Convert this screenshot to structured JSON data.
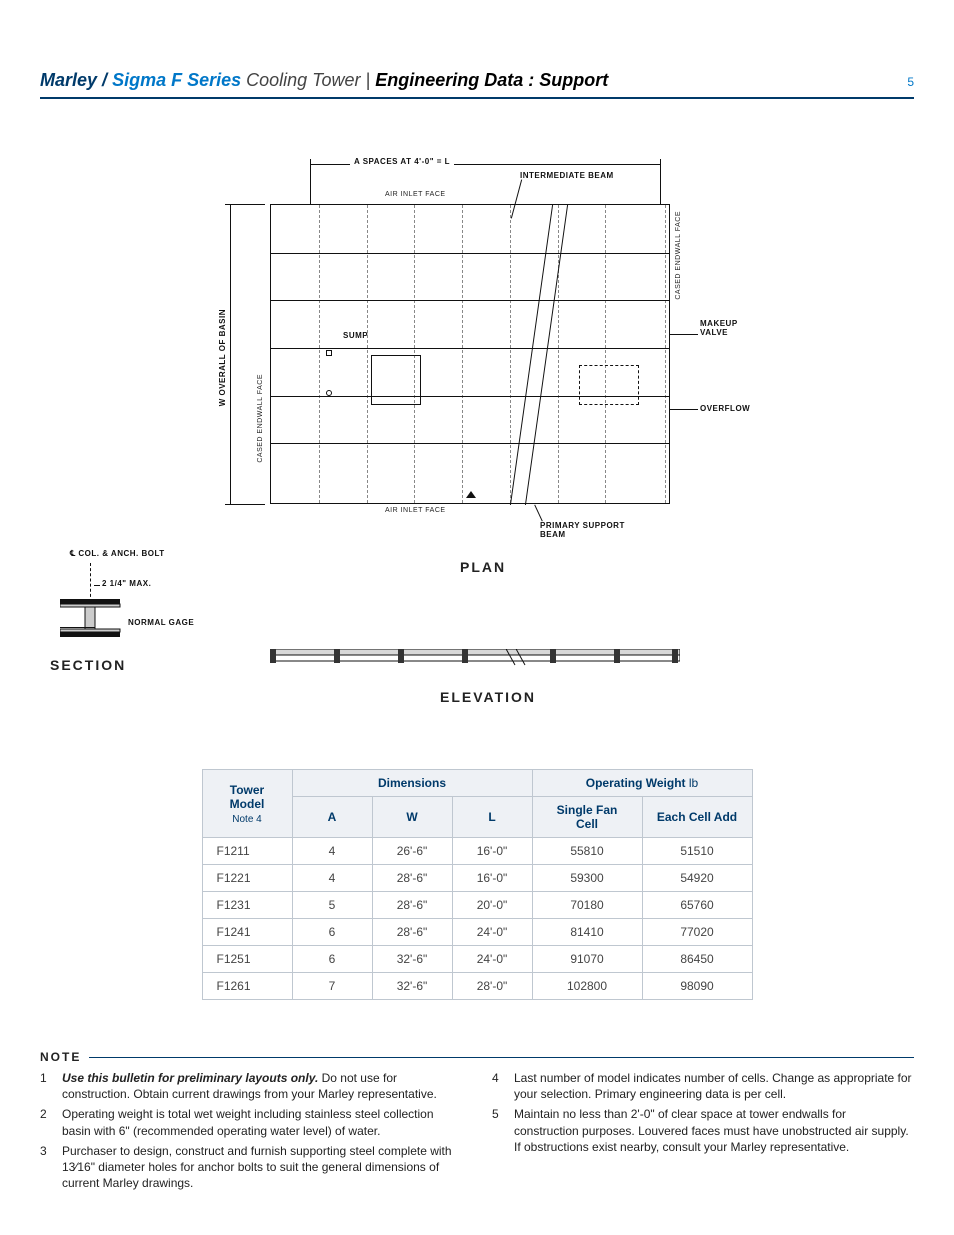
{
  "header": {
    "brand1": "Marley",
    "slash1": " / ",
    "brand2": "Sigma F Series",
    "subtitle_light": " Cooling Tower | ",
    "subtitle_bold": "Engineering Data : Support",
    "page_number": "5"
  },
  "diagram": {
    "a_spaces": "A SPACES AT 4'-0\" = L",
    "air_inlet_top": "AIR INLET FACE",
    "air_inlet_bottom": "AIR INLET FACE",
    "intermediate_beam": "INTERMEDIATE BEAM",
    "w_overall": "W OVERALL OF BASIN",
    "cased_left": "CASED ENDWALL FACE",
    "cased_right": "CASED ENDWALL FACE",
    "sump": "SUMP",
    "makeup_valve": "MAKEUP VALVE",
    "overflow": "OVERFLOW",
    "primary_support": "PRIMARY SUPPORT BEAM",
    "plan_title": "PLAN",
    "col_anch": "COL. & ANCH. BOLT",
    "two_quarter": "2 1/4\" MAX.",
    "normal_gage": "NORMAL GAGE",
    "section_title": "SECTION",
    "elevation_title": "ELEVATION",
    "cl_symbol": "℄"
  },
  "table": {
    "head_tower": "Tower Model",
    "head_tower_note": "Note 4",
    "head_dimensions": "Dimensions",
    "head_weight": "Operating Weight",
    "head_weight_unit": " lb",
    "col_A": "A",
    "col_W": "W",
    "col_L": "L",
    "col_single": "Single Fan Cell",
    "col_each": "Each Cell Add",
    "rows": [
      {
        "model": "F1211",
        "A": "4",
        "W": "26'-6\"",
        "L": "16'-0\"",
        "single": "55810",
        "each": "51510"
      },
      {
        "model": "F1221",
        "A": "4",
        "W": "28'-6\"",
        "L": "16'-0\"",
        "single": "59300",
        "each": "54920"
      },
      {
        "model": "F1231",
        "A": "5",
        "W": "28'-6\"",
        "L": "20'-0\"",
        "single": "70180",
        "each": "65760"
      },
      {
        "model": "F1241",
        "A": "6",
        "W": "28'-6\"",
        "L": "24'-0\"",
        "single": "81410",
        "each": "77020"
      },
      {
        "model": "F1251",
        "A": "6",
        "W": "32'-6\"",
        "L": "24'-0\"",
        "single": "91070",
        "each": "86450"
      },
      {
        "model": "F1261",
        "A": "7",
        "W": "32'-6\"",
        "L": "28'-0\"",
        "single": "102800",
        "each": "98090"
      }
    ]
  },
  "notes": {
    "heading": "NOTE",
    "left": [
      {
        "n": "1",
        "emph": "Use this bulletin for preliminary layouts only.",
        "text": " Do not use for construction. Obtain current drawings from your Marley representative."
      },
      {
        "n": "2",
        "emph": "",
        "text": "Operating weight is total wet weight including stainless steel collection basin with 6\" (recommended operating water level) of water."
      },
      {
        "n": "3",
        "emph": "",
        "text": "Purchaser to design, construct and furnish supporting steel complete with 13⁄16\" diameter holes for anchor bolts to suit the general dimensions of current Marley drawings."
      }
    ],
    "right": [
      {
        "n": "4",
        "emph": "",
        "text": "Last number of model indicates number of cells. Change as appropriate for your selection. Primary engineering data is per cell."
      },
      {
        "n": "5",
        "emph": "",
        "text": "Maintain no less than 2'-0\" of clear space at tower endwalls for construction purposes. Louvered faces must have unobstructed air supply. If obstructions exist nearby, consult your Marley representative."
      }
    ]
  },
  "style": {
    "header_rule_color": "#003a6a",
    "accent_blue": "#0077c8",
    "table_border": "#bfc7d0",
    "table_head_bg": "#eef1f5",
    "text_color": "#222"
  }
}
